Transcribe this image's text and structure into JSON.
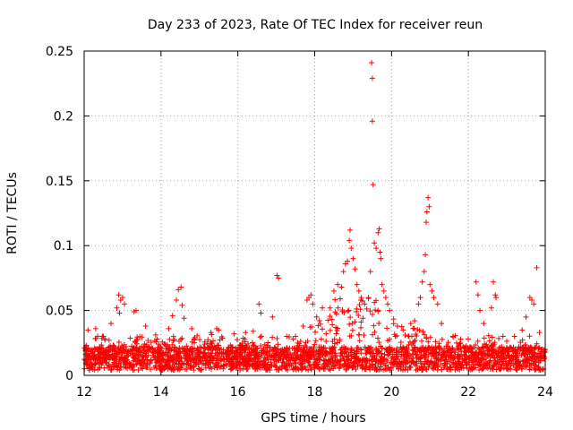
{
  "chart_data": {
    "type": "scatter",
    "title": "Day 233 of 2023, Rate Of TEC Index for receiver reun",
    "xlabel": "GPS time / hours",
    "ylabel": "ROTI / TECUs",
    "xlim": [
      12,
      24
    ],
    "ylim": [
      0,
      0.25
    ],
    "x_ticks": [
      "12",
      "14",
      "16",
      "18",
      "20",
      "22",
      "24"
    ],
    "y_ticks": [
      "0",
      "0.05",
      "0.1",
      "0.15",
      "0.2",
      "0.25"
    ],
    "grid": true,
    "legend": "none",
    "marker": "+",
    "color": "#ff0000",
    "series": [
      {
        "values": [
          [
            12.1,
            0.035
          ],
          [
            12.3,
            0.036
          ],
          [
            12.5,
            0.03
          ],
          [
            12.7,
            0.04
          ],
          [
            12.9,
            0.062
          ],
          [
            12.95,
            0.058
          ],
          [
            13.0,
            0.06
          ],
          [
            13.05,
            0.055
          ],
          [
            12.85,
            0.052
          ],
          [
            12.92,
            0.048
          ],
          [
            13.3,
            0.049
          ],
          [
            13.35,
            0.05
          ],
          [
            13.6,
            0.038
          ],
          [
            13.9,
            0.028
          ],
          [
            14.2,
            0.036
          ],
          [
            14.3,
            0.046
          ],
          [
            14.4,
            0.058
          ],
          [
            14.45,
            0.066
          ],
          [
            14.52,
            0.068
          ],
          [
            14.55,
            0.054
          ],
          [
            14.6,
            0.044
          ],
          [
            14.8,
            0.036
          ],
          [
            15.3,
            0.033
          ],
          [
            15.45,
            0.036
          ],
          [
            15.5,
            0.035
          ],
          [
            15.9,
            0.032
          ],
          [
            16.2,
            0.033
          ],
          [
            16.4,
            0.034
          ],
          [
            16.55,
            0.055
          ],
          [
            16.6,
            0.048
          ],
          [
            16.9,
            0.045
          ],
          [
            17.02,
            0.077
          ],
          [
            17.06,
            0.075
          ],
          [
            17.5,
            0.03
          ],
          [
            17.7,
            0.038
          ],
          [
            17.8,
            0.058
          ],
          [
            17.85,
            0.06
          ],
          [
            17.9,
            0.062
          ],
          [
            17.95,
            0.055
          ],
          [
            18.05,
            0.045
          ],
          [
            18.2,
            0.052
          ],
          [
            18.4,
            0.052
          ],
          [
            18.5,
            0.065
          ],
          [
            18.6,
            0.07
          ],
          [
            18.7,
            0.068
          ],
          [
            18.75,
            0.08
          ],
          [
            18.8,
            0.086
          ],
          [
            18.85,
            0.088
          ],
          [
            18.9,
            0.104
          ],
          [
            18.92,
            0.112
          ],
          [
            18.95,
            0.098
          ],
          [
            19.0,
            0.09
          ],
          [
            19.05,
            0.082
          ],
          [
            19.1,
            0.07
          ],
          [
            19.15,
            0.065
          ],
          [
            19.2,
            0.058
          ],
          [
            19.3,
            0.055
          ],
          [
            19.4,
            0.06
          ],
          [
            19.45,
            0.08
          ],
          [
            19.48,
            0.241
          ],
          [
            19.5,
            0.229
          ],
          [
            19.5,
            0.196
          ],
          [
            19.52,
            0.147
          ],
          [
            19.55,
            0.102
          ],
          [
            19.6,
            0.098
          ],
          [
            19.65,
            0.11
          ],
          [
            19.68,
            0.113
          ],
          [
            19.7,
            0.095
          ],
          [
            19.72,
            0.09
          ],
          [
            19.75,
            0.07
          ],
          [
            19.8,
            0.065
          ],
          [
            19.85,
            0.06
          ],
          [
            19.9,
            0.055
          ],
          [
            19.95,
            0.05
          ],
          [
            20.1,
            0.03
          ],
          [
            20.3,
            0.035
          ],
          [
            20.5,
            0.04
          ],
          [
            20.6,
            0.042
          ],
          [
            20.7,
            0.055
          ],
          [
            20.75,
            0.06
          ],
          [
            20.8,
            0.072
          ],
          [
            20.85,
            0.08
          ],
          [
            20.88,
            0.093
          ],
          [
            20.9,
            0.118
          ],
          [
            20.92,
            0.126
          ],
          [
            20.95,
            0.137
          ],
          [
            20.98,
            0.13
          ],
          [
            21.0,
            0.07
          ],
          [
            21.05,
            0.065
          ],
          [
            21.1,
            0.06
          ],
          [
            21.2,
            0.055
          ],
          [
            21.3,
            0.04
          ],
          [
            21.6,
            0.03
          ],
          [
            21.8,
            0.028
          ],
          [
            22.2,
            0.072
          ],
          [
            22.25,
            0.062
          ],
          [
            22.3,
            0.05
          ],
          [
            22.4,
            0.04
          ],
          [
            22.6,
            0.052
          ],
          [
            22.65,
            0.072
          ],
          [
            22.7,
            0.062
          ],
          [
            22.72,
            0.06
          ],
          [
            22.9,
            0.03
          ],
          [
            23.2,
            0.03
          ],
          [
            23.4,
            0.035
          ],
          [
            23.5,
            0.045
          ],
          [
            23.6,
            0.06
          ],
          [
            23.65,
            0.058
          ],
          [
            23.7,
            0.055
          ],
          [
            23.78,
            0.083
          ],
          [
            23.85,
            0.033
          ],
          [
            23.9,
            0.02
          ],
          [
            23.95,
            0.015
          ]
        ]
      }
    ]
  }
}
